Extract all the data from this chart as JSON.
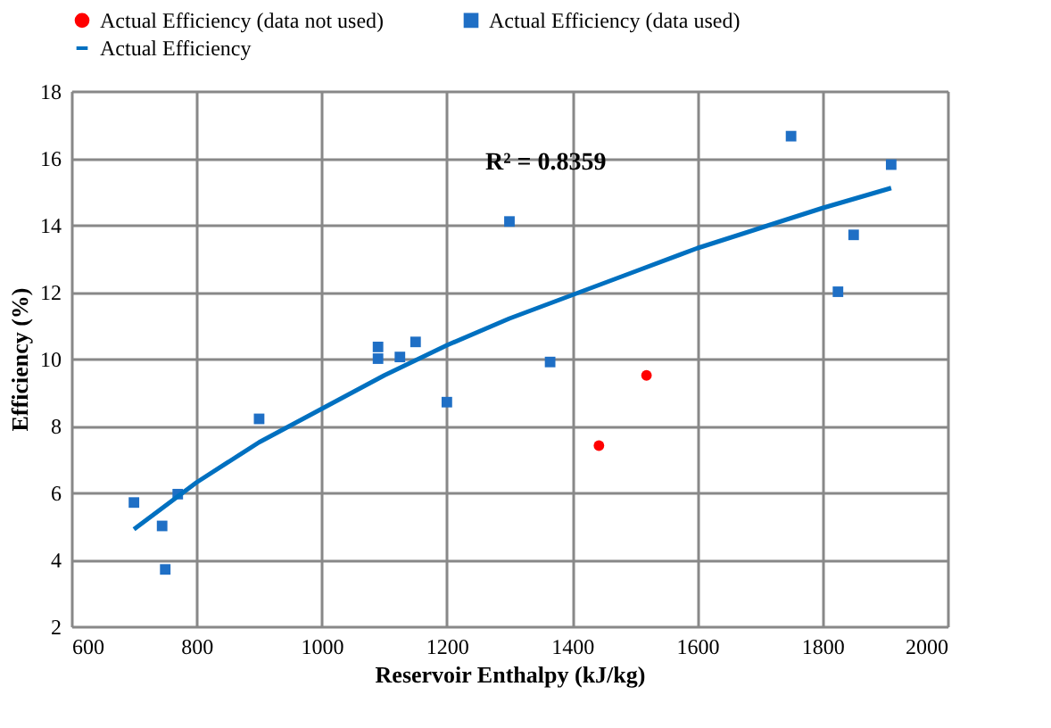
{
  "chart_data": {
    "type": "scatter",
    "xlabel": "Reservoir Enthalpy (kJ/kg)",
    "ylabel": "Efficiency (%)",
    "xlim": [
      600,
      2000
    ],
    "xticks": [
      600,
      800,
      1000,
      1200,
      1400,
      1600,
      1800,
      2000
    ],
    "ylim": [
      2,
      18
    ],
    "yticks": [
      2,
      4,
      6,
      8,
      10,
      12,
      14,
      16,
      18
    ],
    "grid": true,
    "legend": "top",
    "annotations": [
      "R² = 0.8359"
    ],
    "series": [
      {
        "name": "Actual Efficiency (data not used)",
        "marker": "circle",
        "color": "#ff0000",
        "x": [
          1443,
          1519
        ],
        "values": [
          7.4,
          9.5
        ]
      },
      {
        "name": "Actual Efficiency (data used)",
        "marker": "square",
        "color": "#1f6fc5",
        "x": [
          700,
          745,
          750,
          770,
          900,
          1090,
          1090,
          1125,
          1150,
          1200,
          1300,
          1365,
          1750,
          1825,
          1850,
          1910
        ],
        "values": [
          5.7,
          5.0,
          3.7,
          5.95,
          8.2,
          10.35,
          10.0,
          10.05,
          10.5,
          8.7,
          14.1,
          9.9,
          16.65,
          12.0,
          13.7,
          15.8
        ]
      },
      {
        "name": "Actual Efficiency",
        "type": "line",
        "marker": "none",
        "line_style": "solid",
        "color": "#0070c0",
        "x": [
          700,
          800,
          900,
          1000,
          1100,
          1200,
          1300,
          1400,
          1500,
          1600,
          1700,
          1800,
          1910
        ],
        "values": [
          4.9,
          6.3,
          7.5,
          8.5,
          9.5,
          10.4,
          11.2,
          11.9,
          12.6,
          13.3,
          13.9,
          14.5,
          15.1
        ]
      }
    ]
  }
}
